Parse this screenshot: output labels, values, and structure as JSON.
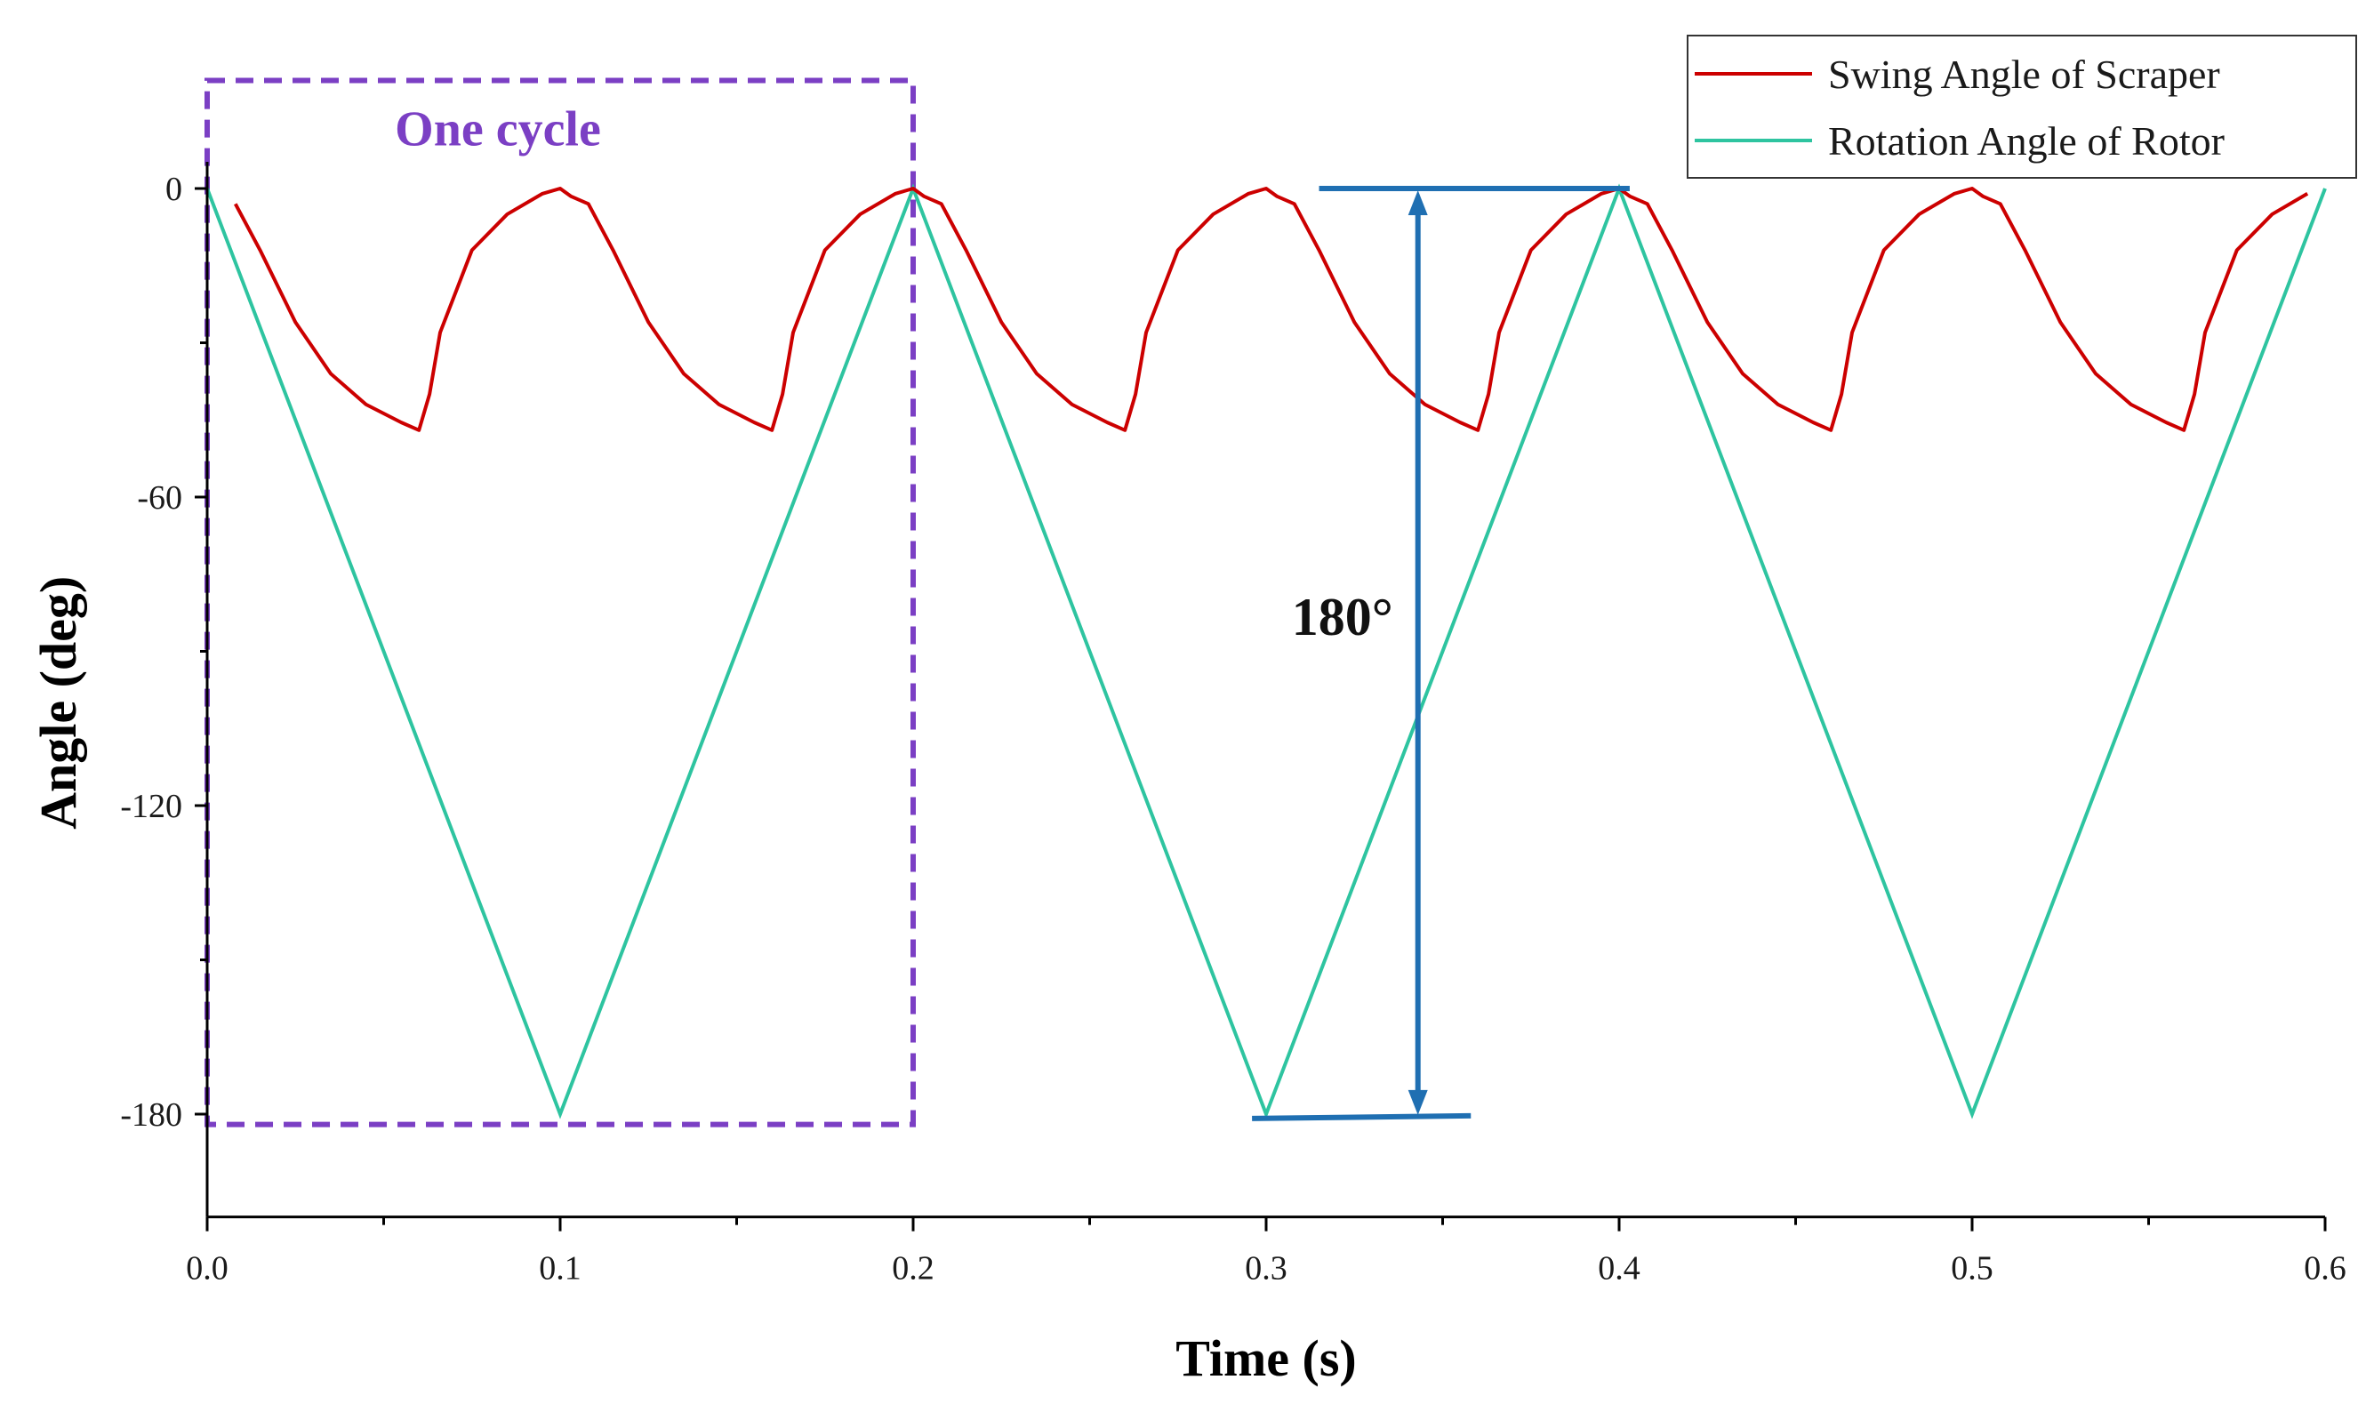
{
  "chart_data": {
    "type": "line",
    "title": "",
    "xlabel": "Time (s)",
    "ylabel": "Angle (deg)",
    "xlim": [
      0,
      0.6
    ],
    "ylim": [
      -200,
      0
    ],
    "grid": false,
    "xticks": [
      "0.0",
      "0.1",
      "0.2",
      "0.3",
      "0.4",
      "0.5",
      "0.6"
    ],
    "yticks": [
      "0",
      "-60",
      "-120",
      "-180"
    ],
    "legend_position": "top-right",
    "series": [
      {
        "name": "Swing Angle of Scraper",
        "color": "#cc0000",
        "cycle_period": 0.2,
        "cycle_profile": {
          "t": [
            0.0,
            0.003,
            0.008,
            0.015,
            0.025,
            0.035,
            0.045,
            0.055,
            0.06,
            0.063,
            0.066,
            0.075,
            0.085,
            0.095,
            0.1,
            0.103,
            0.108,
            0.115,
            0.125,
            0.135,
            0.145,
            0.155,
            0.16,
            0.163,
            0.166,
            0.175,
            0.185,
            0.195,
            0.2
          ],
          "y": [
            0,
            -1.5,
            -3,
            -12,
            -26,
            -36,
            -42,
            -45.5,
            -47,
            -40,
            -28,
            -12,
            -5,
            -1,
            0,
            -1.5,
            -3,
            -12,
            -26,
            -36,
            -42,
            -45.5,
            -47,
            -40,
            -28,
            -12,
            -5,
            -1,
            0
          ]
        },
        "x_start": 0.004,
        "x_end": 0.6
      },
      {
        "name": "Rotation Angle of Rotor",
        "color": "#2ec4a0",
        "x": [
          0.0,
          0.1,
          0.2,
          0.3,
          0.4,
          0.5,
          0.6
        ],
        "values": [
          0,
          -180,
          0,
          -180,
          0,
          -180,
          0
        ]
      }
    ],
    "annotations": {
      "cycle_box": {
        "label": "One cycle",
        "x_range": [
          0.0,
          0.2
        ],
        "y_range": [
          -182,
          21
        ],
        "color": "#7b3fc4"
      },
      "range_marker": {
        "label": "180°",
        "x": 0.343,
        "top_line_x": [
          0.315,
          0.403
        ],
        "top_line_y": 0,
        "bottom_line_x": [
          0.296,
          0.358
        ],
        "bottom_line_y": -180.5,
        "color": "#1f6fb2"
      }
    }
  }
}
